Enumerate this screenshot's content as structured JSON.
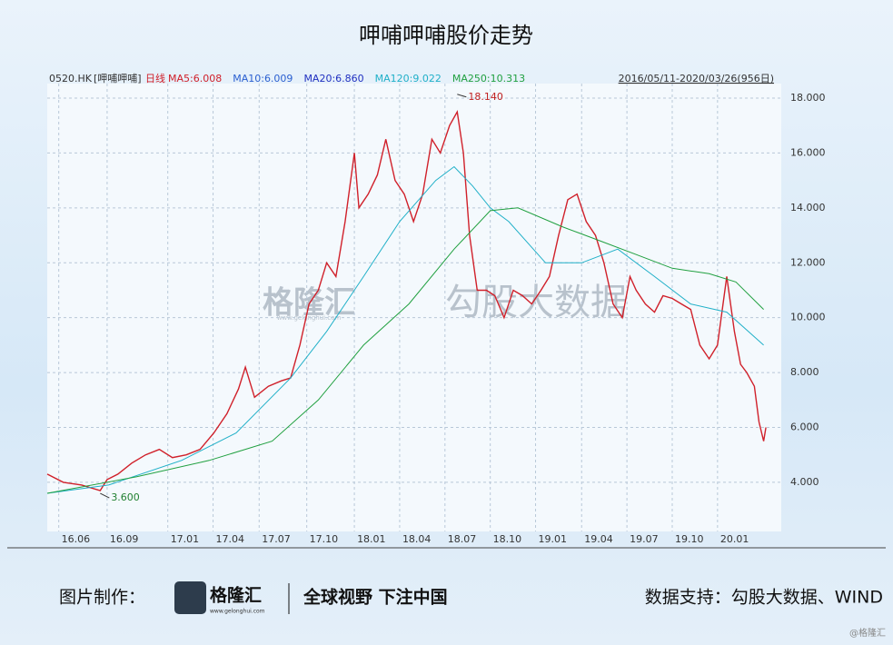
{
  "title": "呷哺呷哺股价走势",
  "chart_data": {
    "type": "line",
    "header": {
      "code": "0520.HK",
      "name": "[呷哺呷哺]",
      "period": "日线",
      "range": "2016/05/11-2020/03/26(956日)",
      "ma_labels": [
        {
          "text": "MA5:6.008",
          "color": "#d0202a"
        },
        {
          "text": "MA10:6.009",
          "color": "#2a5fd0"
        },
        {
          "text": "MA20:6.860",
          "color": "#2030c0"
        },
        {
          "text": "MA120:9.022",
          "color": "#20b0c8"
        },
        {
          "text": "MA250:10.313",
          "color": "#20a040"
        }
      ]
    },
    "xlim": [
      0,
      956
    ],
    "ylim": [
      2.21,
      18.53
    ],
    "yticks": [
      {
        "value": 4,
        "label": "4.000"
      },
      {
        "value": 6,
        "label": "6.000"
      },
      {
        "value": 8,
        "label": "8.000"
      },
      {
        "value": 10,
        "label": "10.000"
      },
      {
        "value": 12,
        "label": "12.000"
      },
      {
        "value": 14,
        "label": "14.000"
      },
      {
        "value": 16,
        "label": "16.000"
      },
      {
        "value": 18,
        "label": "18.000"
      }
    ],
    "xticks": [
      {
        "value": 15,
        "label": "16.06"
      },
      {
        "value": 78,
        "label": "16.09"
      },
      {
        "value": 157,
        "label": "17.01"
      },
      {
        "value": 216,
        "label": "17.04"
      },
      {
        "value": 276,
        "label": "17.07"
      },
      {
        "value": 338,
        "label": "17.10"
      },
      {
        "value": 400,
        "label": "18.01"
      },
      {
        "value": 459,
        "label": "18.04"
      },
      {
        "value": 518,
        "label": "18.07"
      },
      {
        "value": 577,
        "label": "18.10"
      },
      {
        "value": 636,
        "label": "19.01"
      },
      {
        "value": 696,
        "label": "19.04"
      },
      {
        "value": 755,
        "label": "19.07"
      },
      {
        "value": 814,
        "label": "19.10"
      },
      {
        "value": 873,
        "label": "20.01"
      }
    ],
    "grid": true,
    "series": [
      {
        "color": "#d0202a",
        "x": [
          0,
          21,
          45,
          69,
          78,
          92,
          110,
          128,
          146,
          163,
          181,
          199,
          217,
          234,
          249,
          258,
          270,
          288,
          305,
          317,
          329,
          341,
          353,
          364,
          376,
          388,
          400,
          406,
          418,
          430,
          441,
          453,
          465,
          477,
          489,
          501,
          512,
          524,
          534,
          542,
          550,
          560,
          572,
          583,
          595,
          607,
          619,
          631,
          643,
          654,
          666,
          678,
          690,
          702,
          714,
          725,
          737,
          749,
          759,
          767,
          779,
          791,
          802,
          814,
          826,
          838,
          850,
          862,
          873,
          885,
          895,
          903,
          911,
          921,
          927,
          933,
          936
        ],
        "values": [
          4.3,
          4.0,
          3.9,
          3.7,
          4.1,
          4.3,
          4.7,
          5.0,
          5.2,
          4.9,
          5.0,
          5.2,
          5.8,
          6.5,
          7.4,
          8.2,
          7.1,
          7.5,
          7.7,
          7.8,
          9.0,
          10.5,
          11.0,
          12.0,
          11.5,
          13.5,
          16.0,
          14.0,
          14.5,
          15.2,
          16.5,
          15.0,
          14.5,
          13.5,
          14.5,
          16.5,
          16.0,
          17.0,
          17.5,
          16.0,
          13.0,
          11.0,
          11.0,
          10.8,
          10.0,
          11.0,
          10.8,
          10.5,
          11.0,
          11.5,
          13.0,
          14.3,
          14.5,
          13.5,
          13.0,
          12.0,
          10.5,
          10.0,
          11.5,
          11.0,
          10.5,
          10.2,
          10.8,
          10.7,
          10.5,
          10.3,
          9.0,
          8.5,
          9.0,
          11.5,
          9.5,
          8.3,
          8.0,
          7.5,
          6.2,
          5.5,
          6.0
        ]
      },
      {
        "color": "#20b0c8",
        "x": [
          0,
          80,
          175,
          246,
          317,
          364,
          412,
          459,
          506,
          530,
          554,
          577,
          601,
          649,
          696,
          743,
          791,
          838,
          885,
          933
        ],
        "values": [
          3.6,
          3.9,
          4.8,
          5.8,
          7.8,
          9.5,
          11.5,
          13.5,
          15.0,
          15.5,
          14.8,
          14.0,
          13.5,
          12.0,
          12.0,
          12.5,
          11.5,
          10.5,
          10.2,
          9.0
        ]
      },
      {
        "color": "#20a040",
        "x": [
          0,
          116,
          211,
          293,
          353,
          412,
          471,
          530,
          577,
          613,
          672,
          720,
          767,
          814,
          862,
          897,
          933
        ],
        "values": [
          3.6,
          4.2,
          4.8,
          5.5,
          7.0,
          9.0,
          10.5,
          12.5,
          13.9,
          14.0,
          13.3,
          12.8,
          12.3,
          11.8,
          11.6,
          11.3,
          10.3
        ]
      }
    ],
    "annotations": [
      {
        "text": "18.140",
        "x": 534,
        "y": 18.14
      },
      {
        "text": "3.600",
        "x": 69,
        "y": 3.6
      }
    ]
  },
  "watermark": {
    "brand": "格隆汇",
    "site": "www.gelonghui.com",
    "data": "勾股大数据"
  },
  "footer": {
    "made_by": "图片制作：",
    "brand": "格隆汇",
    "site": "www.gelonghui.com",
    "slogan": "全球视野 下注中国",
    "source": "数据支持：勾股大数据、WIND",
    "credit": "@格隆汇"
  }
}
